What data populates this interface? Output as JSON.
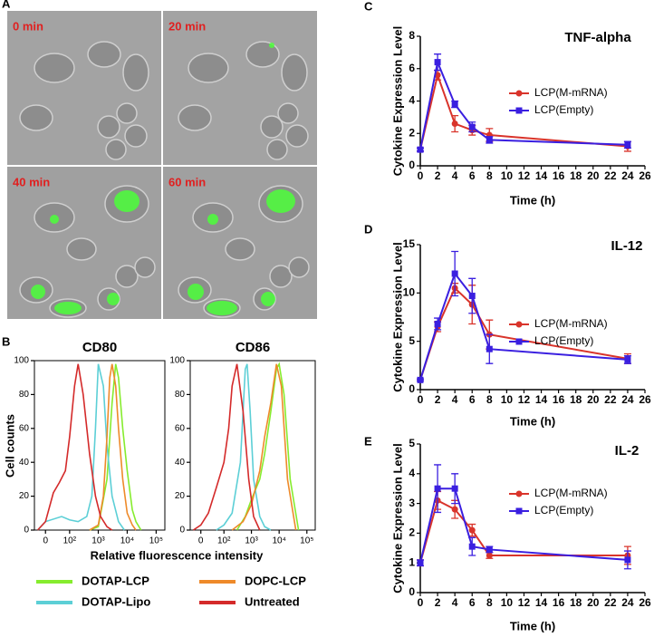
{
  "panel_letters": [
    "A",
    "B",
    "C",
    "D",
    "E"
  ],
  "panel_a": {
    "captions": [
      "0 min",
      "20 min",
      "40 min",
      "60 min"
    ]
  },
  "panel_b": {
    "x_label": "Relative fluorescence intensity",
    "y_label": "Cell counts"
  },
  "chart_data": [
    {
      "type": "line",
      "title": "CD80",
      "xscale": "biexponential",
      "frame": true,
      "xlim": [
        -30,
        200000
      ],
      "xticks": [
        0,
        {
          "value": 100,
          "label": "10²"
        },
        {
          "value": 1000,
          "label": "10³"
        },
        {
          "value": 10000,
          "label": "10⁴"
        },
        {
          "value": 100000,
          "label": "10⁵"
        }
      ],
      "ylim": [
        0,
        100
      ],
      "yticks": [
        0,
        20,
        40,
        60,
        80,
        100
      ],
      "series": [
        {
          "name": "DOTAP-LCP",
          "color": "#86ec2e",
          "x": [
            500,
            1000,
            2000,
            3000,
            4000,
            5000,
            7000,
            10000,
            15000,
            20000,
            30000
          ],
          "values": [
            0,
            2,
            30,
            75,
            98,
            90,
            60,
            35,
            12,
            5,
            0
          ]
        },
        {
          "name": "DOTAP-Lipo",
          "color": "#5ccfd6",
          "x": [
            -20,
            0,
            50,
            100,
            200,
            400,
            600,
            800,
            1000,
            1500,
            2000,
            3000,
            5000,
            8000
          ],
          "values": [
            0,
            5,
            8,
            6,
            5,
            8,
            20,
            60,
            98,
            85,
            50,
            20,
            5,
            0
          ]
        },
        {
          "name": "DOPC-LCP",
          "color": "#ee8a2a",
          "x": [
            500,
            1000,
            1500,
            2000,
            2500,
            3000,
            4000,
            5000,
            7000,
            10000,
            15000,
            20000
          ],
          "values": [
            0,
            3,
            20,
            55,
            90,
            98,
            85,
            60,
            30,
            10,
            3,
            0
          ]
        },
        {
          "name": "Untreated",
          "color": "#d42a2a",
          "x": [
            -20,
            0,
            20,
            40,
            70,
            100,
            150,
            200,
            300,
            500,
            800,
            1200,
            2000,
            3000
          ],
          "values": [
            0,
            5,
            22,
            28,
            35,
            55,
            85,
            98,
            80,
            45,
            20,
            8,
            2,
            0
          ]
        }
      ]
    },
    {
      "type": "line",
      "title": "CD86",
      "xscale": "biexponential",
      "frame": true,
      "xlim": [
        -30,
        200000
      ],
      "xticks": [
        0,
        {
          "value": 100,
          "label": "10²"
        },
        {
          "value": 1000,
          "label": "10³"
        },
        {
          "value": 10000,
          "label": "10⁴"
        },
        {
          "value": 100000,
          "label": "10⁵"
        }
      ],
      "ylim": [
        0,
        100
      ],
      "yticks": [
        0,
        20,
        40,
        60,
        80,
        100
      ],
      "series": [
        {
          "color": "#86ec2e",
          "x": [
            300,
            600,
            1000,
            2000,
            3000,
            5000,
            8000,
            10000,
            15000,
            25000,
            50000
          ],
          "values": [
            0,
            8,
            18,
            30,
            45,
            70,
            95,
            98,
            80,
            30,
            0
          ]
        },
        {
          "color": "#5ccfd6",
          "x": [
            50,
            100,
            200,
            400,
            600,
            700,
            900,
            1200,
            2000,
            3000,
            5000
          ],
          "values": [
            0,
            3,
            10,
            40,
            95,
            98,
            70,
            30,
            8,
            2,
            0
          ]
        },
        {
          "color": "#ee8a2a",
          "x": [
            200,
            500,
            1000,
            2000,
            3000,
            5000,
            8000,
            12000,
            20000,
            40000
          ],
          "values": [
            0,
            5,
            15,
            35,
            55,
            75,
            98,
            85,
            30,
            0
          ]
        },
        {
          "color": "#d42a2a",
          "x": [
            -20,
            0,
            20,
            50,
            100,
            150,
            200,
            300,
            500,
            800,
            1200,
            2000
          ],
          "values": [
            0,
            3,
            10,
            25,
            40,
            60,
            85,
            98,
            70,
            30,
            8,
            0
          ]
        }
      ]
    },
    {
      "type": "line",
      "title": "TNF-alpha",
      "x_label": "Time (h)",
      "y_label": "Cytokine Expression Level",
      "x": [
        0,
        2,
        4,
        6,
        8,
        24
      ],
      "xlim": [
        0,
        26
      ],
      "xticks": [
        0,
        2,
        4,
        6,
        8,
        10,
        12,
        14,
        16,
        18,
        20,
        22,
        24,
        26
      ],
      "ylim": [
        0,
        8
      ],
      "yticks": [
        0,
        2,
        4,
        6,
        8
      ],
      "series": [
        {
          "name": "LCP(M-mRNA)",
          "color": "#d9342b",
          "marker": "circle",
          "values": [
            1,
            5.6,
            2.6,
            2.2,
            1.9,
            1.2
          ],
          "errors": [
            0.1,
            0.3,
            0.5,
            0.3,
            0.4,
            0.3
          ]
        },
        {
          "name": "LCP(Empty)",
          "color": "#3a1fe0",
          "marker": "square",
          "values": [
            1,
            6.4,
            3.8,
            2.4,
            1.6,
            1.3
          ],
          "errors": [
            0.1,
            0.5,
            0.2,
            0.3,
            0.2,
            0.2
          ]
        }
      ]
    },
    {
      "type": "line",
      "title": "IL-12",
      "x_label": "Time (h)",
      "y_label": "Cytokine Expression Level",
      "x": [
        0,
        2,
        4,
        6,
        8,
        24
      ],
      "xlim": [
        0,
        26
      ],
      "xticks": [
        0,
        2,
        4,
        6,
        8,
        10,
        12,
        14,
        16,
        18,
        20,
        22,
        24,
        26
      ],
      "ylim": [
        0,
        15
      ],
      "yticks": [
        0,
        5,
        10,
        15
      ],
      "series": [
        {
          "name": "LCP(M-mRNA)",
          "color": "#d9342b",
          "marker": "circle",
          "values": [
            1,
            6.5,
            10.5,
            8.8,
            5.7,
            3.2
          ],
          "errors": [
            0.1,
            0.5,
            0.5,
            2,
            1.5,
            0.5
          ]
        },
        {
          "name": "LCP(Empty)",
          "color": "#3a1fe0",
          "marker": "square",
          "values": [
            1,
            6.8,
            12,
            9.7,
            4.2,
            3.1
          ],
          "errors": [
            0.1,
            0.6,
            2.3,
            1.8,
            1.5,
            0.4
          ]
        }
      ]
    },
    {
      "type": "line",
      "title": "IL-2",
      "x_label": "Time (h)",
      "y_label": "Cytokine Expression Level",
      "x": [
        0,
        2,
        4,
        6,
        8,
        24
      ],
      "xlim": [
        0,
        26
      ],
      "xticks": [
        0,
        2,
        4,
        6,
        8,
        10,
        12,
        14,
        16,
        18,
        20,
        22,
        24,
        26
      ],
      "ylim": [
        0,
        5
      ],
      "yticks": [
        0,
        1,
        2,
        3,
        4,
        5
      ],
      "series": [
        {
          "name": "LCP(M-mRNA)",
          "color": "#d9342b",
          "marker": "circle",
          "values": [
            1,
            3.1,
            2.8,
            2.1,
            1.25,
            1.25
          ],
          "errors": [
            0.1,
            0.3,
            0.3,
            0.2,
            0.1,
            0.3
          ]
        },
        {
          "name": "LCP(Empty)",
          "color": "#3a1fe0",
          "marker": "square",
          "values": [
            1,
            3.5,
            3.5,
            1.55,
            1.45,
            1.1
          ],
          "errors": [
            0.1,
            0.8,
            0.5,
            0.3,
            0.1,
            0.3
          ]
        }
      ]
    }
  ]
}
